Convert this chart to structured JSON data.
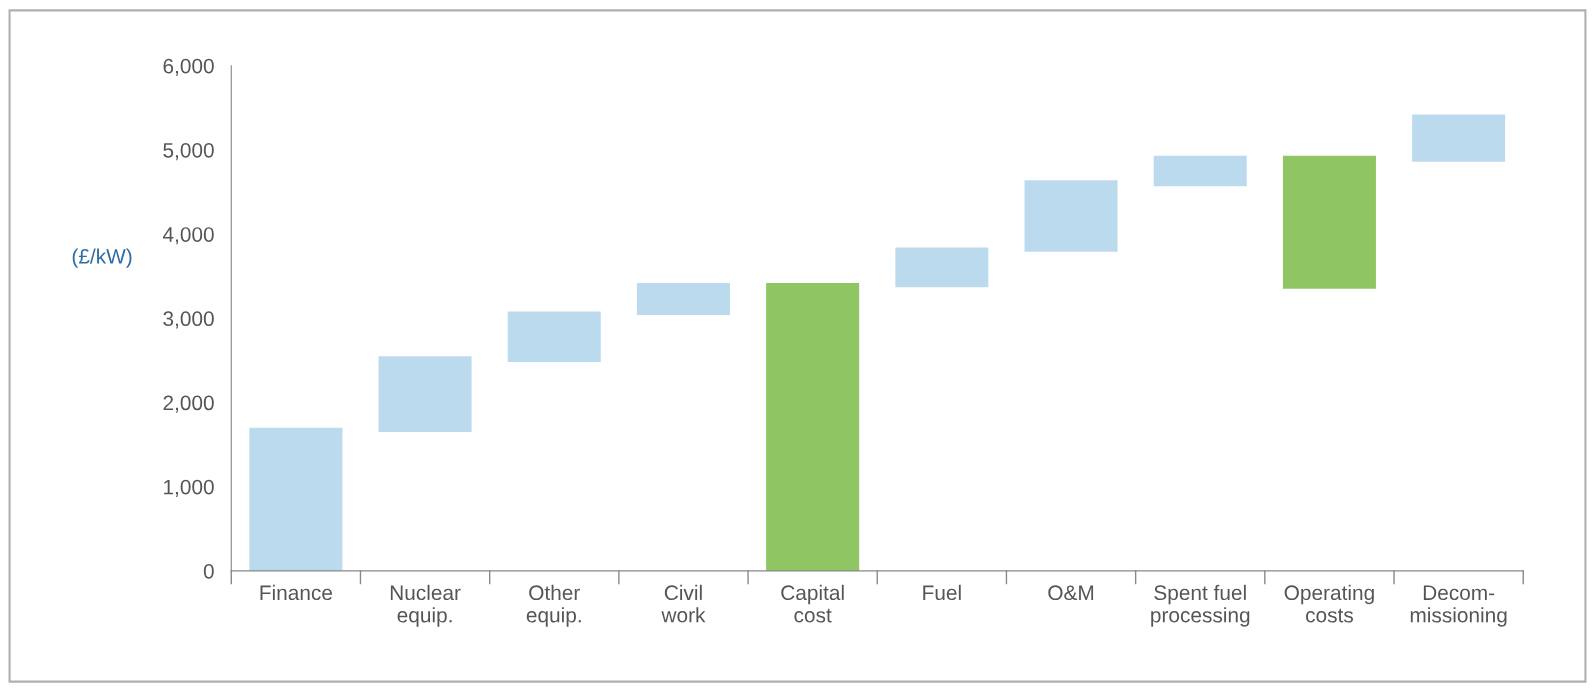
{
  "chart_data": {
    "type": "bar",
    "ylabel": "(£/kW)",
    "categories": [
      "Finance",
      "Nuclear\nequip.",
      "Other\nequip.",
      "Civil\nwork",
      "Capital\ncost",
      "Fuel",
      "O&M",
      "Spent fuel\nprocessing",
      "Operating\ncosts",
      "Decom-\nmissioning"
    ],
    "values": [
      1700,
      900,
      600,
      380,
      3420,
      470,
      850,
      360,
      1580,
      560
    ],
    "base": [
      0,
      1650,
      2480,
      3040,
      0,
      3370,
      3790,
      4570,
      3350,
      4860
    ],
    "colors": [
      "#bcdaee",
      "#bcdaee",
      "#bcdaee",
      "#bcdaee",
      "#8fc563",
      "#bcdaee",
      "#bcdaee",
      "#bcdaee",
      "#8fc563",
      "#bcdaee"
    ],
    "ylim": [
      0,
      6000
    ],
    "yticks": [
      {
        "value": 0,
        "label": "0"
      },
      {
        "value": 1000,
        "label": "1,000"
      },
      {
        "value": 2000,
        "label": "2,000"
      },
      {
        "value": 3000,
        "label": "3,000"
      },
      {
        "value": 4000,
        "label": "4,000"
      },
      {
        "value": 5000,
        "label": "5,000"
      },
      {
        "value": 6000,
        "label": "6,000"
      }
    ],
    "grid": false
  }
}
